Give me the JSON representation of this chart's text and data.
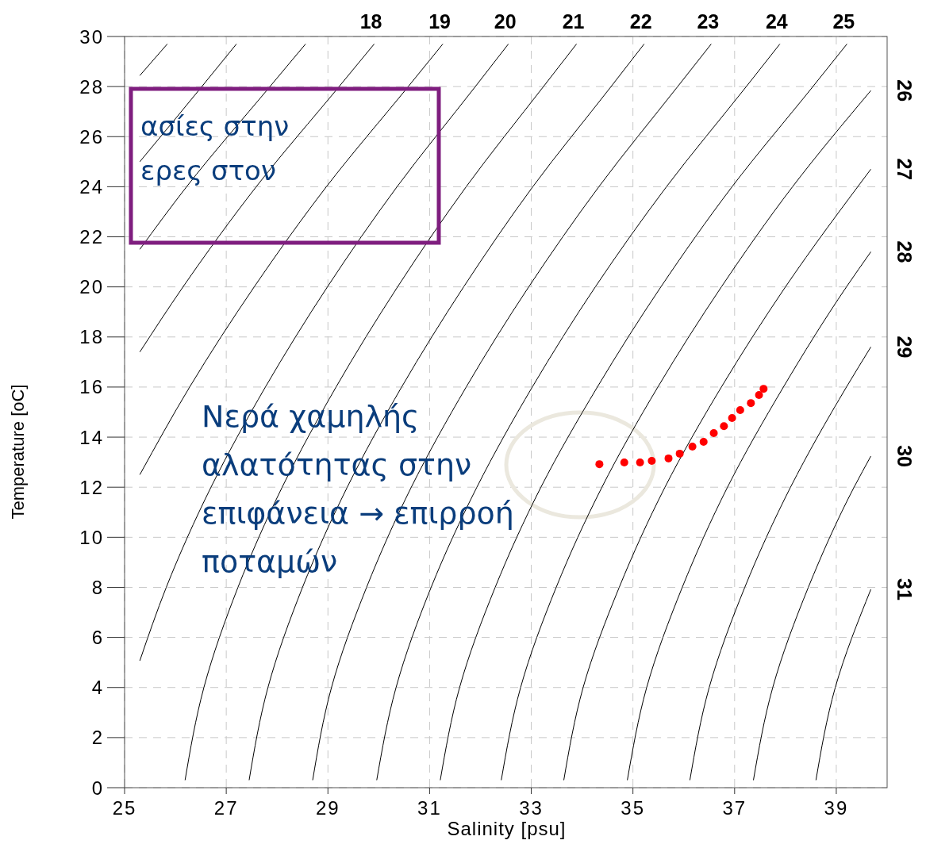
{
  "chart_data": {
    "type": "line",
    "xlabel": "Salinity [psu]",
    "ylabel": "Temperature [oC]",
    "xlim": [
      25,
      40
    ],
    "xticks": [
      25,
      27,
      29,
      31,
      33,
      35,
      37,
      39
    ],
    "ylim": [
      0,
      30
    ],
    "yticks": [
      0,
      2,
      4,
      6,
      8,
      10,
      12,
      14,
      16,
      18,
      20,
      22,
      24,
      26,
      28,
      30
    ],
    "grid": true,
    "legend": false,
    "line_style": "solid",
    "marker": "none",
    "series": [
      {
        "color": "#000000",
        "x": [
          25.3,
          25.84
        ],
        "values": [
          28.44,
          29.7
        ]
      },
      {
        "color": "#000000",
        "x": [
          25.3,
          26.52,
          27.2
        ],
        "values": [
          25,
          28,
          29.7
        ]
      },
      {
        "color": "#000000",
        "x": [
          25.3,
          26.22,
          27.86,
          28.56
        ],
        "values": [
          21.5,
          24,
          28,
          29.7
        ]
      },
      {
        "name": "18",
        "color": "#000000",
        "x": [
          25.3,
          26.15,
          27.59,
          29.22,
          29.91
        ],
        "values": [
          17.4,
          20,
          24,
          28,
          29.7
        ]
      },
      {
        "name": "19",
        "color": "#000000",
        "x": [
          25.3,
          26.28,
          27.55,
          28.97,
          30.58,
          31.26
        ],
        "values": [
          12.5,
          16,
          20,
          24,
          28,
          29.7
        ]
      },
      {
        "name": "20",
        "color": "#000000",
        "x": [
          25.3,
          25.82,
          26.7,
          27.77,
          28.99,
          30.36,
          31.9,
          32.55
        ],
        "values": [
          5.07,
          8,
          12,
          16,
          20,
          24,
          28,
          29.7
        ]
      },
      {
        "name": "21",
        "color": "#000000",
        "x": [
          26.19,
          26.56,
          27.23,
          28.1,
          29.16,
          30.37,
          31.72,
          33.24,
          33.89
        ],
        "values": [
          0.3,
          4,
          8,
          12,
          16,
          20,
          24,
          28,
          29.7
        ]
      },
      {
        "name": "22",
        "color": "#000000",
        "x": [
          27.45,
          27.82,
          28.5,
          29.38,
          30.45,
          31.67,
          33.03,
          34.57,
          35.22
        ],
        "values": [
          0.3,
          4,
          8,
          12,
          16,
          20,
          24,
          28,
          29.7
        ]
      },
      {
        "name": "23",
        "color": "#000000",
        "x": [
          28.7,
          29.07,
          29.76,
          30.64,
          31.72,
          32.95,
          34.33,
          35.88,
          36.54
        ],
        "values": [
          0.3,
          4,
          8,
          12,
          16,
          20,
          24,
          28,
          29.7
        ]
      },
      {
        "name": "24",
        "color": "#000000",
        "x": [
          29.96,
          30.34,
          31.03,
          31.93,
          33.02,
          34.26,
          35.66,
          37.23,
          37.89
        ],
        "values": [
          0.3,
          4,
          8,
          12,
          16,
          20,
          24,
          28,
          29.7
        ]
      },
      {
        "name": "25",
        "color": "#000000",
        "x": [
          31.21,
          31.59,
          32.29,
          33.19,
          34.3,
          35.55,
          36.95,
          38.54,
          39.21
        ],
        "values": [
          0.3,
          4,
          8,
          12,
          16,
          20,
          24,
          28,
          29.7
        ]
      },
      {
        "name": "26",
        "color": "#000000",
        "x": [
          32.41,
          32.79,
          33.49,
          34.39,
          35.49,
          36.74,
          38.14,
          39.68
        ],
        "values": [
          0.3,
          4,
          8,
          12,
          16,
          20,
          24,
          27.84
        ]
      },
      {
        "name": "27",
        "color": "#000000",
        "x": [
          33.64,
          34.02,
          34.73,
          35.63,
          36.74,
          38.0,
          39.68
        ],
        "values": [
          0.3,
          4,
          8,
          12,
          16,
          20,
          24.7
        ]
      },
      {
        "name": "28",
        "color": "#000000",
        "x": [
          34.89,
          35.27,
          35.97,
          36.86,
          37.96,
          39.2,
          39.68
        ],
        "values": [
          0.3,
          4,
          8,
          12,
          16,
          20,
          21.4
        ]
      },
      {
        "name": "29",
        "color": "#000000",
        "x": [
          36.12,
          36.5,
          37.2,
          38.1,
          39.2,
          39.68
        ],
        "values": [
          0.3,
          4,
          8,
          12,
          16,
          17.6
        ]
      },
      {
        "name": "30",
        "color": "#000000",
        "x": [
          37.37,
          37.75,
          38.45,
          39.35,
          39.68
        ],
        "values": [
          0.3,
          4,
          8,
          12,
          13.24
        ]
      },
      {
        "name": "31",
        "color": "#000000",
        "x": [
          38.6,
          38.98,
          39.68
        ],
        "values": [
          0.3,
          4,
          7.92
        ]
      },
      {
        "type": "scatter",
        "color": "#ff0000",
        "marker": "circle",
        "x": [
          34.34,
          34.83,
          35.14,
          35.37,
          35.7,
          35.92,
          36.17,
          36.39,
          36.59,
          36.79,
          36.95,
          37.11,
          37.32,
          37.48,
          37.57
        ],
        "values": [
          12.92,
          12.99,
          12.99,
          13.05,
          13.15,
          13.34,
          13.62,
          13.81,
          14.16,
          14.44,
          14.76,
          15.08,
          15.36,
          15.68,
          15.93
        ]
      }
    ],
    "annotations": [
      "ασίες στην\nερες στον",
      "Νερά χαμηλής\nαλατότητας στην\nεπιφάνεια → επιρροή\nποταμών"
    ]
  }
}
